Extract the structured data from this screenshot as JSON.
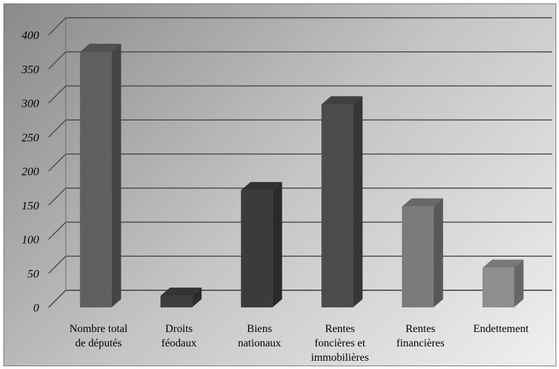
{
  "chart_data": {
    "type": "bar",
    "title": "",
    "xlabel": "",
    "ylabel": "",
    "ylim": [
      0,
      400
    ],
    "yticks": [
      "0",
      "50",
      "100",
      "150",
      "200",
      "250",
      "300",
      "350",
      "400"
    ],
    "categories": [
      [
        "Nombre total",
        "de députés"
      ],
      [
        "Droits",
        "féodaux"
      ],
      [
        "Biens",
        "nationaux"
      ],
      [
        "Rentes",
        "foncières et",
        "immobilières"
      ],
      [
        "Rentes",
        "financières"
      ],
      [
        "Endettement"
      ]
    ],
    "values": [
      375,
      17,
      172,
      298,
      148,
      58
    ],
    "bar_colors": [
      "#5f5f5f",
      "#3d3d3d",
      "#3b3b3b",
      "#4b4b4b",
      "#7a7a7a",
      "#8e8e8e"
    ],
    "grid": true,
    "legend": "none"
  }
}
